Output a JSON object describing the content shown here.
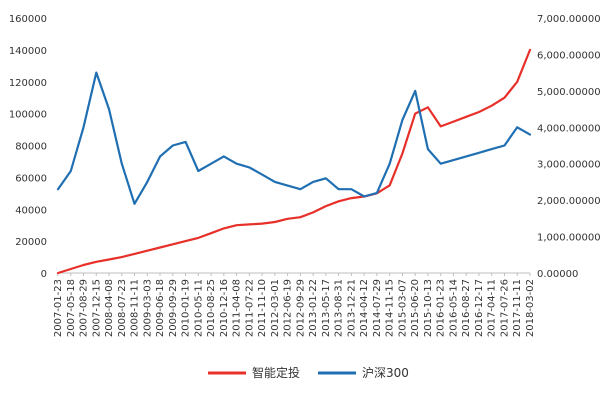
{
  "chart_data": {
    "type": "line",
    "title": "",
    "xlabel": "",
    "ylabel": "",
    "grid": false,
    "legend_position": "bottom",
    "x_tick_labels": [
      "2007-01-23",
      "2007-05-18",
      "2007-08-29",
      "2007-12-15",
      "2008-04-08",
      "2008-07-23",
      "2008-11-11",
      "2009-03-03",
      "2009-06-18",
      "2009-09-29",
      "2010-01-19",
      "2010-05-11",
      "2010-08-25",
      "2010-12-16",
      "2011-04-08",
      "2011-07-22",
      "2011-11-10",
      "2012-03-01",
      "2012-06-19",
      "2012-09-29",
      "2013-01-22",
      "2013-05-17",
      "2013-08-31",
      "2013-12-21",
      "2014-04-12",
      "2014-07-29",
      "2014-11-15",
      "2015-03-07",
      "2015-06-20",
      "2015-10-13",
      "2016-01-23",
      "2016-05-14",
      "2016-08-27",
      "2016-12-17",
      "2017-04-11",
      "2017-07-26",
      "2017-11-11",
      "2018-03-02"
    ],
    "y_left": {
      "ylim": [
        0,
        160000
      ],
      "tick_labels": [
        "0",
        "20000",
        "40000",
        "60000",
        "80000",
        "100000",
        "120000",
        "140000",
        "160000"
      ]
    },
    "y_right": {
      "ylim": [
        0,
        7000
      ],
      "tick_labels": [
        "0.00000",
        "1,000.00000",
        "2,000.00000",
        "3,000.00000",
        "4,000.00000",
        "5,000.00000",
        "6,000.00000",
        "7,000.00000"
      ]
    },
    "series": [
      {
        "name": "智能定投",
        "color": "#e8302a",
        "axis": "left",
        "values": [
          0,
          2500,
          5000,
          7000,
          8500,
          10000,
          12000,
          14000,
          16000,
          18000,
          20000,
          22000,
          25000,
          28000,
          30000,
          30500,
          31000,
          32000,
          34000,
          35000,
          38000,
          42000,
          45000,
          47000,
          48000,
          50000,
          55000,
          75000,
          100000,
          104000,
          92000,
          95000,
          98000,
          101000,
          105000,
          110000,
          120000,
          140000
        ]
      },
      {
        "name": "沪深300",
        "color": "#1f6fb2",
        "axis": "right",
        "values": [
          2300,
          2800,
          4000,
          5500,
          4500,
          3000,
          1900,
          2500,
          3200,
          3500,
          3600,
          2800,
          3000,
          3200,
          3000,
          2900,
          2700,
          2500,
          2400,
          2300,
          2500,
          2600,
          2300,
          2300,
          2100,
          2200,
          3000,
          4200,
          5000,
          3400,
          3000,
          3100,
          3200,
          3300,
          3400,
          3500,
          4000,
          3800
        ]
      }
    ]
  }
}
